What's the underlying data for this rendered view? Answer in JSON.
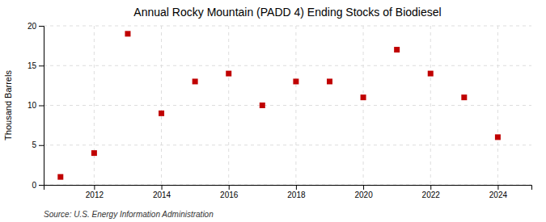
{
  "chart_data": {
    "type": "scatter",
    "title": "Annual Rocky Mountain (PADD 4) Ending Stocks of Biodiesel",
    "ylabel": "Thousand Barrels",
    "annotations": [
      "Source: U.S. Energy Information Administration"
    ],
    "x": [
      2011,
      2012,
      2013,
      2014,
      2015,
      2016,
      2017,
      2018,
      2019,
      2020,
      2021,
      2022,
      2023,
      2024
    ],
    "values": [
      1,
      4,
      19,
      9,
      13,
      14,
      10,
      13,
      13,
      11,
      17,
      14,
      11,
      6
    ],
    "color": "#c00000",
    "marker": "square",
    "xlim": [
      2010.5,
      2025.0
    ],
    "xticks": [
      2012,
      2014,
      2016,
      2018,
      2020,
      2022,
      2024
    ],
    "ylim": [
      0,
      20
    ],
    "yticks": [
      0,
      5,
      10,
      15,
      20
    ],
    "grid": true
  }
}
